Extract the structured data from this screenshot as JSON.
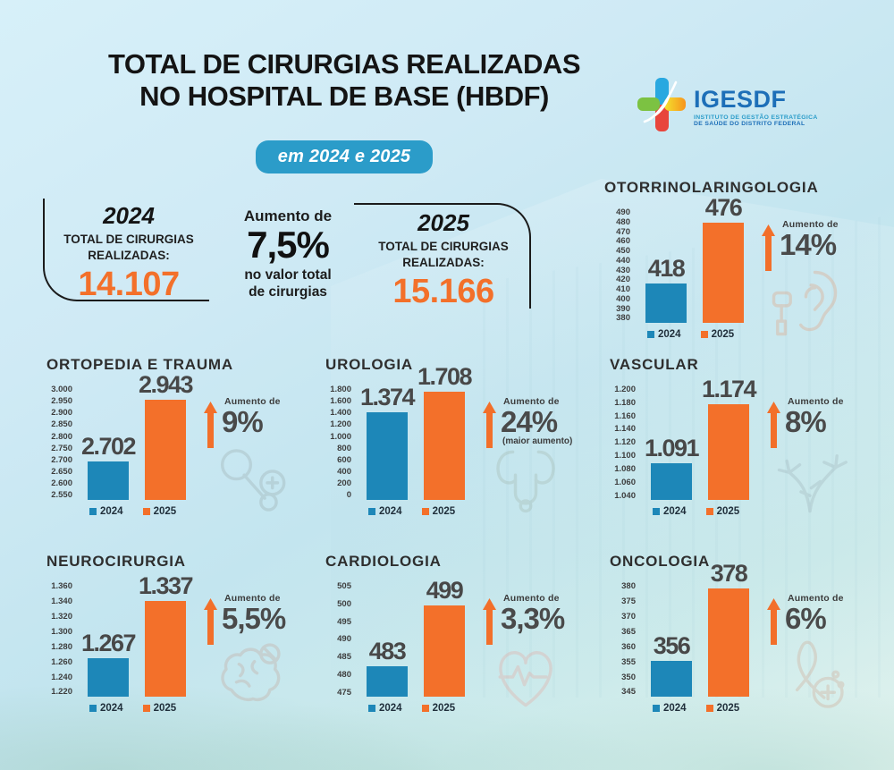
{
  "header": {
    "title_line1": "TOTAL DE CIRURGIAS REALIZADAS",
    "title_line2": "NO HOSPITAL DE BASE (HBDF)",
    "badge": "em 2024 e 2025"
  },
  "logo": {
    "name": "IGESDF",
    "subtitle_line1": "INSTITUTO DE GESTÃO ESTRATÉGICA",
    "subtitle_line2": "DE SAÚDE DO DISTRITO FEDERAL",
    "cross_icon": "igesdf-cross-icon"
  },
  "summary": {
    "box_2024": {
      "year": "2024",
      "label_line1": "TOTAL DE CIRURGIAS",
      "label_line2": "REALIZADAS:",
      "value": "14.107"
    },
    "increase": {
      "prefix": "Aumento de",
      "value": "7,5%",
      "suffix_line1": "no valor total",
      "suffix_line2": "de cirurgias"
    },
    "box_2025": {
      "year": "2025",
      "label_line1": "TOTAL DE CIRURGIAS",
      "label_line2": "REALIZADAS:",
      "value": "15.166"
    }
  },
  "legend": {
    "y2024": "2024",
    "y2025": "2025"
  },
  "colors": {
    "bar_2024": "#1d87b8",
    "bar_2025": "#f3702a",
    "accent_orange": "#f26f2a",
    "badge_blue": "#2b9cc9",
    "value_gray": "#4a4a4a"
  },
  "chart_data": [
    {
      "type": "bar",
      "title": "OTORRINOLARINGOLOGIA",
      "icon": "ear-icon",
      "categories": [
        "2024",
        "2025"
      ],
      "values": [
        418,
        476
      ],
      "value_labels": [
        "418",
        "476"
      ],
      "y_ticks": [
        "490",
        "480",
        "470",
        "460",
        "450",
        "440",
        "430",
        "420",
        "410",
        "400",
        "390",
        "380"
      ],
      "ylim": [
        380,
        490
      ],
      "grid": false,
      "legend_position": "bottom",
      "increase_label": "Aumento de",
      "increase_value": "14%",
      "increase_note": ""
    },
    {
      "type": "bar",
      "title": "ORTOPEDIA E TRAUMA",
      "icon": "hip-joint-icon",
      "categories": [
        "2024",
        "2025"
      ],
      "values": [
        2702,
        2943
      ],
      "value_labels": [
        "2.702",
        "2.943"
      ],
      "y_ticks": [
        "3.000",
        "2.950",
        "2.900",
        "2.850",
        "2.800",
        "2.750",
        "2.700",
        "2.650",
        "2.600",
        "2.550"
      ],
      "ylim": [
        2550,
        3000
      ],
      "grid": false,
      "legend_position": "bottom",
      "increase_label": "Aumento de",
      "increase_value": "9%",
      "increase_note": ""
    },
    {
      "type": "bar",
      "title": "UROLOGIA",
      "icon": "kidneys-icon",
      "categories": [
        "2024",
        "2025"
      ],
      "values": [
        1374,
        1708
      ],
      "value_labels": [
        "1.374",
        "1.708"
      ],
      "y_ticks": [
        "1.800",
        "1.600",
        "1.400",
        "1.200",
        "1.000",
        "800",
        "600",
        "400",
        "200",
        "0"
      ],
      "ylim": [
        0,
        1800
      ],
      "grid": false,
      "legend_position": "bottom",
      "increase_label": "Aumento de",
      "increase_value": "24%",
      "increase_note": "(maior aumento)"
    },
    {
      "type": "bar",
      "title": "VASCULAR",
      "icon": "blood-vessels-icon",
      "categories": [
        "2024",
        "2025"
      ],
      "values": [
        1091,
        1174
      ],
      "value_labels": [
        "1.091",
        "1.174"
      ],
      "y_ticks": [
        "1.200",
        "1.180",
        "1.160",
        "1.140",
        "1.120",
        "1.100",
        "1.080",
        "1.060",
        "1.040"
      ],
      "ylim": [
        1040,
        1200
      ],
      "grid": false,
      "legend_position": "bottom",
      "increase_label": "Aumento de",
      "increase_value": "8%",
      "increase_note": ""
    },
    {
      "type": "bar",
      "title": "NEUROCIRURGIA",
      "icon": "brain-icon",
      "categories": [
        "2024",
        "2025"
      ],
      "values": [
        1267,
        1337
      ],
      "value_labels": [
        "1.267",
        "1.337"
      ],
      "y_ticks": [
        "1.360",
        "1.340",
        "1.320",
        "1.300",
        "1.280",
        "1.260",
        "1.240",
        "1.220"
      ],
      "ylim": [
        1220,
        1360
      ],
      "grid": false,
      "legend_position": "bottom",
      "increase_label": "Aumento de",
      "increase_value": "5,5%",
      "increase_note": ""
    },
    {
      "type": "bar",
      "title": "CARDIOLOGIA",
      "icon": "heart-ekg-icon",
      "categories": [
        "2024",
        "2025"
      ],
      "values": [
        483,
        499
      ],
      "value_labels": [
        "483",
        "499"
      ],
      "y_ticks": [
        "505",
        "500",
        "495",
        "490",
        "485",
        "480",
        "475"
      ],
      "ylim": [
        475,
        505
      ],
      "grid": false,
      "legend_position": "bottom",
      "increase_label": "Aumento de",
      "increase_value": "3,3%",
      "increase_note": ""
    },
    {
      "type": "bar",
      "title": "ONCOLOGIA",
      "icon": "awareness-ribbon-icon",
      "categories": [
        "2024",
        "2025"
      ],
      "values": [
        356,
        378
      ],
      "value_labels": [
        "356",
        "378"
      ],
      "y_ticks": [
        "380",
        "375",
        "370",
        "365",
        "360",
        "355",
        "350",
        "345"
      ],
      "ylim": [
        345,
        380
      ],
      "grid": false,
      "legend_position": "bottom",
      "increase_label": "Aumento de",
      "increase_value": "6%",
      "increase_note": ""
    }
  ]
}
